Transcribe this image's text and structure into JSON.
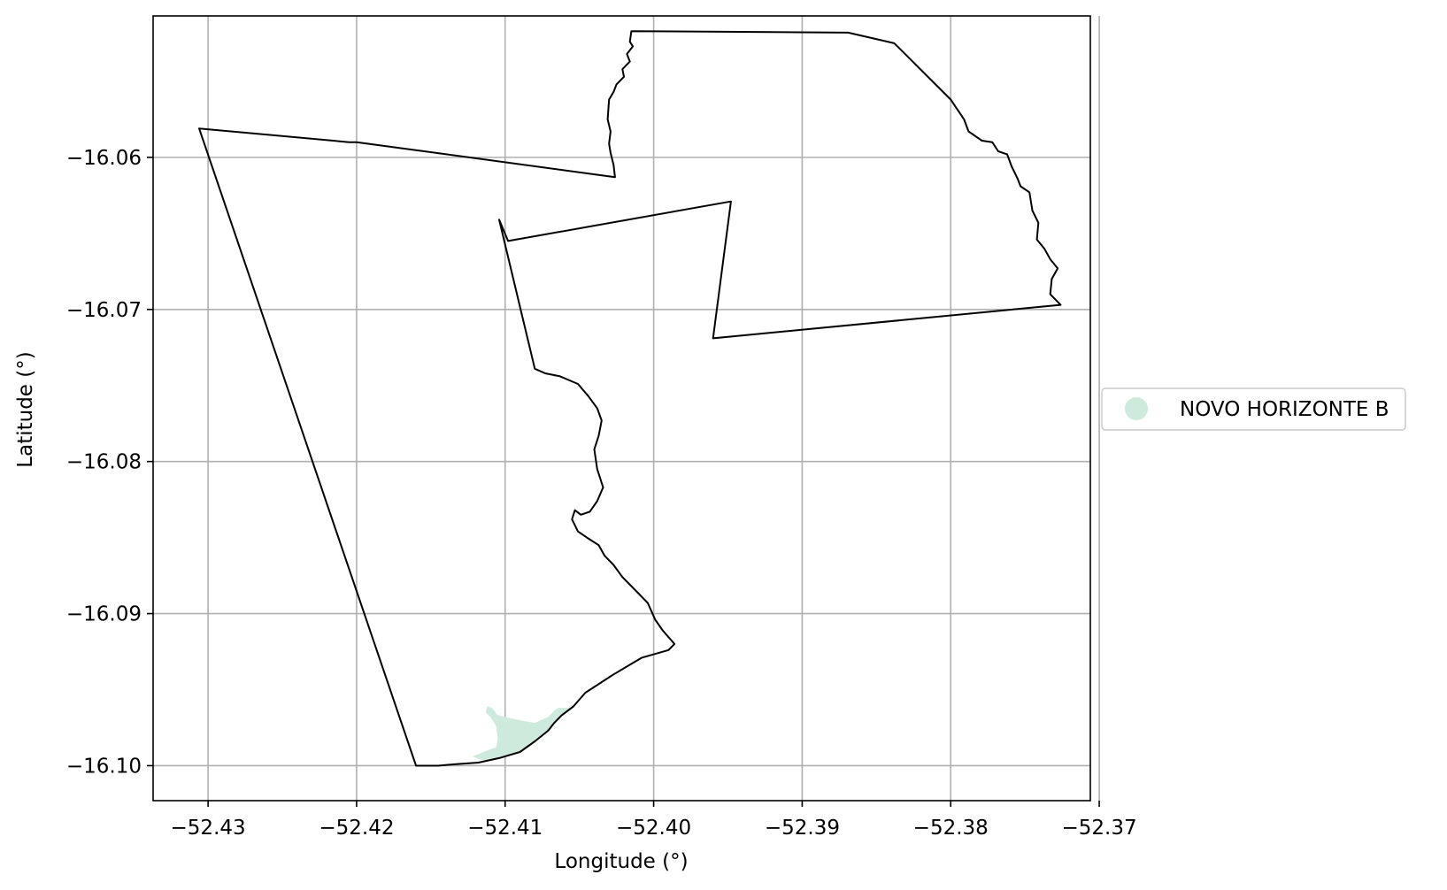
{
  "chart_data": {
    "type": "map",
    "title": "",
    "xlabel": "Longitude (°)",
    "ylabel": "Latitude (°)",
    "xlim": [
      -52.4337,
      -52.3706
    ],
    "ylim": [
      -16.1023,
      -16.0507
    ],
    "grid": true,
    "x_ticks": [
      {
        "value": -52.43,
        "label": "−52.43"
      },
      {
        "value": -52.42,
        "label": "−52.42"
      },
      {
        "value": -52.41,
        "label": "−52.41"
      },
      {
        "value": -52.4,
        "label": "−52.40"
      },
      {
        "value": -52.39,
        "label": "−52.39"
      },
      {
        "value": -52.38,
        "label": "−52.38"
      },
      {
        "value": -52.37,
        "label": "−52.37"
      }
    ],
    "y_ticks": [
      {
        "value": -16.06,
        "label": "−16.06"
      },
      {
        "value": -16.07,
        "label": "−16.07"
      },
      {
        "value": -16.08,
        "label": "−16.08"
      },
      {
        "value": -16.09,
        "label": "−16.09"
      },
      {
        "value": -16.1,
        "label": "−16.10"
      }
    ],
    "boundary": {
      "stroke": "#000000",
      "coordinates": [
        [
          -52.4306,
          -16.0581
        ],
        [
          -52.4205,
          -16.059
        ],
        [
          -52.42,
          -16.059
        ],
        [
          -52.4026,
          -16.0613
        ],
        [
          -52.4027,
          -16.0605
        ],
        [
          -52.4029,
          -16.0597
        ],
        [
          -52.403,
          -16.0591
        ],
        [
          -52.4029,
          -16.0583
        ],
        [
          -52.4031,
          -16.0575
        ],
        [
          -52.403,
          -16.0562
        ],
        [
          -52.4027,
          -16.0557
        ],
        [
          -52.4025,
          -16.0552
        ],
        [
          -52.402,
          -16.0547
        ],
        [
          -52.4021,
          -16.0542
        ],
        [
          -52.4016,
          -16.0537
        ],
        [
          -52.4018,
          -16.0532
        ],
        [
          -52.4014,
          -16.0527
        ],
        [
          -52.4016,
          -16.0524
        ],
        [
          -52.4015,
          -16.0517
        ],
        [
          -52.3869,
          -16.0518
        ],
        [
          -52.3838,
          -16.0525
        ],
        [
          -52.38,
          -16.0562
        ],
        [
          -52.3791,
          -16.0575
        ],
        [
          -52.3788,
          -16.0583
        ],
        [
          -52.3779,
          -16.0589
        ],
        [
          -52.3772,
          -16.059
        ],
        [
          -52.3768,
          -16.0596
        ],
        [
          -52.3762,
          -16.0598
        ],
        [
          -52.3759,
          -16.0606
        ],
        [
          -52.3755,
          -16.0614
        ],
        [
          -52.3753,
          -16.0619
        ],
        [
          -52.3747,
          -16.0623
        ],
        [
          -52.3745,
          -16.0635
        ],
        [
          -52.3741,
          -16.0643
        ],
        [
          -52.3742,
          -16.0654
        ],
        [
          -52.3737,
          -16.066
        ],
        [
          -52.3733,
          -16.0667
        ],
        [
          -52.3728,
          -16.0673
        ],
        [
          -52.3732,
          -16.068
        ],
        [
          -52.3733,
          -16.069
        ],
        [
          -52.3726,
          -16.0697
        ],
        [
          -52.396,
          -16.0719
        ],
        [
          -52.3948,
          -16.0629
        ],
        [
          -52.4098,
          -16.0655
        ],
        [
          -52.4104,
          -16.0641
        ],
        [
          -52.408,
          -16.0739
        ],
        [
          -52.4073,
          -16.0742
        ],
        [
          -52.4063,
          -16.0744
        ],
        [
          -52.4051,
          -16.0749
        ],
        [
          -52.4044,
          -16.0757
        ],
        [
          -52.4038,
          -16.0765
        ],
        [
          -52.4035,
          -16.0773
        ],
        [
          -52.4037,
          -16.0783
        ],
        [
          -52.404,
          -16.0792
        ],
        [
          -52.4038,
          -16.0805
        ],
        [
          -52.4034,
          -16.0817
        ],
        [
          -52.4038,
          -16.0826
        ],
        [
          -52.4043,
          -16.0833
        ],
        [
          -52.4049,
          -16.0835
        ],
        [
          -52.4053,
          -16.0832
        ],
        [
          -52.4055,
          -16.0838
        ],
        [
          -52.4051,
          -16.0846
        ],
        [
          -52.4045,
          -16.085
        ],
        [
          -52.4037,
          -16.0855
        ],
        [
          -52.4033,
          -16.0862
        ],
        [
          -52.4027,
          -16.0868
        ],
        [
          -52.4021,
          -16.0876
        ],
        [
          -52.4013,
          -16.0884
        ],
        [
          -52.4004,
          -16.0893
        ],
        [
          -52.3999,
          -16.0904
        ],
        [
          -52.3994,
          -16.0911
        ],
        [
          -52.3986,
          -16.092
        ],
        [
          -52.399,
          -16.0924
        ],
        [
          -52.4008,
          -16.0929
        ],
        [
          -52.4027,
          -16.094
        ],
        [
          -52.4046,
          -16.0952
        ],
        [
          -52.4054,
          -16.0961
        ],
        [
          -52.4062,
          -16.0967
        ],
        [
          -52.4067,
          -16.0972
        ],
        [
          -52.4071,
          -16.0977
        ],
        [
          -52.408,
          -16.0984
        ],
        [
          -52.409,
          -16.0991
        ],
        [
          -52.4104,
          -16.0995
        ],
        [
          -52.4118,
          -16.0998
        ],
        [
          -52.4133,
          -16.0999
        ],
        [
          -52.4145,
          -16.1
        ],
        [
          -52.416,
          -16.1
        ],
        [
          -52.4306,
          -16.0581
        ]
      ]
    },
    "legend": {
      "placement": "outside-right",
      "entries": [
        {
          "label": "NOVO HORIZONTE B",
          "color": "#cdeadd"
        }
      ]
    },
    "series": [
      {
        "name": "NOVO HORIZONTE B",
        "type": "polygon",
        "color": "#cdeadd",
        "coordinates": [
          [
            -52.4112,
            -16.0961
          ],
          [
            -52.4109,
            -16.0962
          ],
          [
            -52.4107,
            -16.0964
          ],
          [
            -52.4106,
            -16.0966
          ],
          [
            -52.4104,
            -16.0967
          ],
          [
            -52.41,
            -16.0968
          ],
          [
            -52.4095,
            -16.0969
          ],
          [
            -52.4091,
            -16.097
          ],
          [
            -52.4085,
            -16.0971
          ],
          [
            -52.408,
            -16.0972
          ],
          [
            -52.4078,
            -16.0971
          ],
          [
            -52.4071,
            -16.0968
          ],
          [
            -52.4066,
            -16.0963
          ],
          [
            -52.4064,
            -16.0962
          ],
          [
            -52.4058,
            -16.0962
          ],
          [
            -52.4054,
            -16.0962
          ],
          [
            -52.4062,
            -16.0967
          ],
          [
            -52.4067,
            -16.0972
          ],
          [
            -52.4071,
            -16.0977
          ],
          [
            -52.408,
            -16.0984
          ],
          [
            -52.409,
            -16.0991
          ],
          [
            -52.4104,
            -16.0995
          ],
          [
            -52.4113,
            -16.0997
          ],
          [
            -52.4122,
            -16.0994
          ],
          [
            -52.4112,
            -16.099
          ],
          [
            -52.4106,
            -16.0988
          ],
          [
            -52.4105,
            -16.0982
          ],
          [
            -52.4106,
            -16.0974
          ],
          [
            -52.411,
            -16.0968
          ],
          [
            -52.4113,
            -16.0965
          ],
          [
            -52.4112,
            -16.0961
          ]
        ]
      }
    ]
  }
}
